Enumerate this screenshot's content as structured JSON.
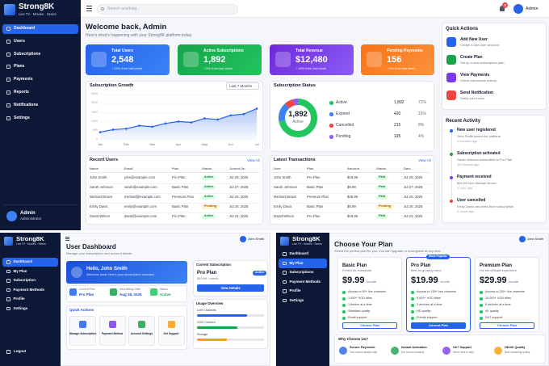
{
  "admin": {
    "brand": {
      "name": "Strong8K",
      "tagline": "Live TV · Movies · Series"
    },
    "nav": [
      "Dashboard",
      "Users",
      "Subscriptions",
      "Plans",
      "Payments",
      "Reports",
      "Notifications",
      "Settings"
    ],
    "user": {
      "name": "Admin",
      "role": "Administrator"
    },
    "topbar": {
      "search": "Search anything...",
      "badge": "3",
      "user": "Admin"
    },
    "welcome": {
      "title": "Welcome back, Admin",
      "subtitle": "Here's what's happening with your Strong8K platform today."
    },
    "stats": [
      {
        "label": "Total Users",
        "value": "2,548",
        "change": "↑ 12% from last week"
      },
      {
        "label": "Active Subscriptions",
        "value": "1,892",
        "change": "↑ 8% from last week"
      },
      {
        "label": "Total Revenue",
        "value": "$12,480",
        "change": "↑ 15% from last week"
      },
      {
        "label": "Pending Payments",
        "value": "156",
        "change": "↓ 4% from last week"
      }
    ],
    "growth": {
      "title": "Subscription Growth",
      "filter": "Last 7 Months",
      "chart": {
        "type": "line",
        "categories": [
          "Jan",
          null,
          "Feb",
          null,
          "Mar",
          null,
          "Apr",
          null,
          "May",
          null,
          "Jun",
          null,
          "Jul"
        ],
        "values": [
          420,
          560,
          610,
          780,
          720,
          900,
          1010,
          960,
          1180,
          1120,
          1350,
          1420,
          1720
        ],
        "ylim": [
          0,
          2500
        ],
        "yticks": [
          0,
          500,
          1000,
          1500,
          2000,
          2500
        ],
        "color": "#2563eb"
      }
    },
    "status": {
      "title": "Subscription Status",
      "center_value": "1,892",
      "center_label": "Active",
      "items": [
        {
          "label": "Active",
          "count": "1,892",
          "percent": {
            "value": 72,
            "label": "72%"
          },
          "color": "#22c55e"
        },
        {
          "label": "Expired",
          "count": "420",
          "percent": {
            "value": 16,
            "label": "16%"
          },
          "color": "#3b82f6"
        },
        {
          "label": "Cancelled",
          "count": "215",
          "percent": {
            "value": 8,
            "label": "8%"
          },
          "color": "#ef4444"
        },
        {
          "label": "Pending",
          "count": "125",
          "percent": {
            "value": 4,
            "label": "4%"
          },
          "color": "#8b5cf6"
        }
      ]
    },
    "users_table": {
      "title": "Recent Users",
      "link": "View All",
      "columns": [
        "Name",
        "Email",
        "Plan",
        "Status",
        "Joined On"
      ],
      "rows": [
        [
          "John Smith",
          "john@example.com",
          "Pro Plan",
          "Active",
          "Jul 28, 2025"
        ],
        [
          "Sarah Johnson",
          "sarah@example.com",
          "Basic Plan",
          "Active",
          "Jul 27, 2025"
        ],
        [
          "Michael Brown",
          "michael@example.com",
          "Premium Plan",
          "Active",
          "Jul 26, 2025"
        ],
        [
          "Emily Davis",
          "emily@example.com",
          "Basic Plan",
          "Pending",
          "Jul 25, 2025"
        ],
        [
          "David Wilson",
          "david@example.com",
          "Pro Plan",
          "Active",
          "Jul 24, 2025"
        ]
      ]
    },
    "transactions": {
      "title": "Latest Transactions",
      "link": "View All",
      "columns": [
        "User",
        "Plan",
        "Amount",
        "Status",
        "Date"
      ],
      "rows": [
        [
          "John Smith",
          "Pro Plan",
          "$19.99",
          "Paid",
          "Jul 28, 2025"
        ],
        [
          "Sarah Johnson",
          "Basic Plan",
          "$9.99",
          "Paid",
          "Jul 27, 2025"
        ],
        [
          "Michael Brown",
          "Premium Plan",
          "$29.99",
          "Paid",
          "Jul 26, 2025"
        ],
        [
          "Emily Davis",
          "Basic Plan",
          "$9.99",
          "Pending",
          "Jul 25, 2025"
        ],
        [
          "David Wilson",
          "Pro Plan",
          "$19.99",
          "Paid",
          "Jul 24, 2025"
        ]
      ]
    },
    "quick_actions": {
      "title": "Quick Actions",
      "items": [
        {
          "title": "Add New User",
          "subtitle": "Create a new user account"
        },
        {
          "title": "Create Plan",
          "subtitle": "Set up a new subscription plan"
        },
        {
          "title": "View Payments",
          "subtitle": "Check transaction history"
        },
        {
          "title": "Send Notification",
          "subtitle": "Notify your users"
        }
      ]
    },
    "activity": {
      "title": "Recent Activity",
      "items": [
        {
          "title": "New user registered",
          "detail": "John Smith joined the platform",
          "time": "2 minutes ago"
        },
        {
          "title": "Subscription activated",
          "detail": "Sarah Johnson subscribed to Pro Plan",
          "time": "15 minutes ago"
        },
        {
          "title": "Payment received",
          "detail": "$19.99 from Michael Brown",
          "time": "1 hour ago"
        },
        {
          "title": "User cancelled",
          "detail": "Emily Davis cancelled their subscription",
          "time": "3 hours ago"
        }
      ]
    }
  },
  "user_dashboard": {
    "brand": {
      "name": "Strong8K",
      "tagline": "Live TV · Movies · Series"
    },
    "nav": [
      "Dashboard",
      "My Plan",
      "Subscription",
      "Payment Methods",
      "Profile",
      "Settings"
    ],
    "logout": "Logout",
    "user": "John Smith",
    "title": "User Dashboard",
    "subtitle": "Manage your subscription and account details",
    "hello": {
      "title": "Hello, John Smith",
      "subtitle": "Welcome back! Here's your subscription overview."
    },
    "stats": [
      {
        "label": "Current Plan",
        "value": "Pro Plan"
      },
      {
        "label": "Next Billing Date",
        "value": "Aug 28, 2025"
      },
      {
        "label": "Status",
        "value": "Active"
      }
    ],
    "subscription": {
      "title": "Current Subscription",
      "plan": "Pro Plan",
      "price": "$19.99 / month",
      "status": "Active",
      "button": "View Details"
    },
    "usage": {
      "title": "Usage Overview",
      "xlim": [
        0,
        100
      ],
      "items": [
        {
          "label": "Live Channels",
          "value": 75
        },
        {
          "label": "VOD Content",
          "value": 60
        },
        {
          "label": "Storage",
          "value": 45
        }
      ]
    },
    "quick_actions": {
      "title": "Quick Actions",
      "items": [
        "Manage Subscription",
        "Payment Method",
        "Account Settings",
        "Get Support"
      ]
    }
  },
  "plans_page": {
    "brand": {
      "name": "Strong8K",
      "tagline": "Live TV · Movies · Series"
    },
    "nav": [
      "Dashboard",
      "My Plan",
      "Subscriptions",
      "Payment Methods",
      "Profile",
      "Settings"
    ],
    "user": "John Smith",
    "title": "Choose Your Plan",
    "subtitle": "Select the perfect plan for you. You can upgrade or downgrade at any time.",
    "badge": "Most Popular",
    "plans": [
      {
        "name": "Basic Plan",
        "tagline": "Perfect for individuals",
        "price": "$9.99",
        "period": "/month",
        "features": [
          "Access to 50+ live channels",
          "1,000+ VOD titles",
          "1 device at a time",
          "Standard quality",
          "Email support"
        ],
        "button": "Choose Plan"
      },
      {
        "name": "Pro Plan",
        "tagline": "Best for growing users",
        "price": "$19.99",
        "period": "/month",
        "features": [
          "Access to 150+ live channels",
          "5,000+ VOD titles",
          "3 devices at a time",
          "HD quality",
          "Priority support"
        ],
        "button": "Current Plan"
      },
      {
        "name": "Premium Plan",
        "tagline": "For the ultimate experience",
        "price": "$29.99",
        "period": "/month",
        "features": [
          "Access to 200+ live channels",
          "10,000+ VOD titles",
          "5 devices at a time",
          "4K quality",
          "24/7 support"
        ],
        "button": "Choose Plan"
      }
    ],
    "why": {
      "title": "Why Choose Us?",
      "items": [
        {
          "title": "Secure Payments",
          "subtitle": "Your data is always safe"
        },
        {
          "title": "Instant Activation",
          "subtitle": "Get access instantly"
        },
        {
          "title": "24/7 Support",
          "subtitle": "We're here to help"
        },
        {
          "title": "HD/4K Quality",
          "subtitle": "Best streaming quality"
        }
      ]
    }
  }
}
